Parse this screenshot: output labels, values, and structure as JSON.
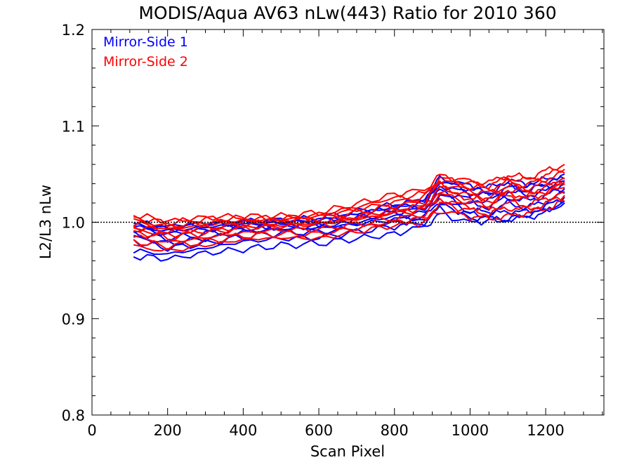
{
  "chart_data": {
    "type": "line",
    "title": "MODIS/Aqua AV63 nLw(443) Ratio for 2010 360",
    "xlabel": "Scan Pixel",
    "ylabel": "L2/L3 nLw",
    "xlim": [
      0,
      1354
    ],
    "ylim": [
      0.8,
      1.2
    ],
    "xticks": [
      "0",
      "200",
      "400",
      "600",
      "800",
      "1000",
      "1200"
    ],
    "yticks": [
      "0.8",
      "0.9",
      "1.0",
      "1.1",
      "1.2"
    ],
    "reference_line": {
      "y": 1.0,
      "style": "dotted"
    },
    "legend": {
      "position": "top-left",
      "entries": [
        "Mirror-Side 1",
        "Mirror-Side 2"
      ]
    },
    "colors": {
      "Mirror-Side 1": "#0000ff",
      "Mirror-Side 2": "#ff0000"
    },
    "x": [
      110,
      200,
      300,
      400,
      500,
      600,
      700,
      800,
      880,
      920,
      1000,
      1050,
      1100,
      1150,
      1200,
      1250
    ],
    "series": [
      {
        "name": "Mirror-Side 1",
        "values": [
          0.965,
          0.962,
          0.968,
          0.972,
          0.976,
          0.978,
          0.983,
          0.988,
          0.996,
          1.008,
          1.0,
          1.002,
          1.003,
          1.005,
          1.01,
          1.02
        ]
      },
      {
        "name": "Mirror-Side 1",
        "values": [
          0.97,
          0.967,
          0.973,
          0.98,
          0.983,
          0.984,
          0.99,
          0.996,
          1.0,
          1.015,
          1.005,
          1.004,
          1.002,
          1.008,
          1.012,
          1.022
        ]
      },
      {
        "name": "Mirror-Side 1",
        "values": [
          0.985,
          0.978,
          0.983,
          0.99,
          0.993,
          0.994,
          0.998,
          1.003,
          1.005,
          1.022,
          1.012,
          1.01,
          1.02,
          1.015,
          1.022,
          1.03
        ]
      },
      {
        "name": "Mirror-Side 1",
        "values": [
          0.988,
          0.983,
          0.988,
          0.993,
          0.995,
          0.996,
          1.0,
          1.006,
          1.01,
          1.028,
          1.018,
          1.016,
          1.026,
          1.022,
          1.028,
          1.035
        ]
      },
      {
        "name": "Mirror-Side 1",
        "values": [
          0.993,
          0.988,
          0.992,
          0.996,
          0.997,
          0.999,
          1.004,
          1.01,
          1.014,
          1.032,
          1.024,
          1.022,
          1.032,
          1.028,
          1.032,
          1.04
        ]
      },
      {
        "name": "Mirror-Side 1",
        "values": [
          0.995,
          0.991,
          0.995,
          0.998,
          0.999,
          1.001,
          1.007,
          1.014,
          1.018,
          1.038,
          1.03,
          1.028,
          1.036,
          1.033,
          1.038,
          1.043
        ]
      },
      {
        "name": "Mirror-Side 1",
        "values": [
          0.998,
          0.993,
          0.997,
          1.0,
          1.0,
          1.003,
          1.009,
          1.016,
          1.021,
          1.042,
          1.034,
          1.031,
          1.039,
          1.036,
          1.041,
          1.045
        ]
      },
      {
        "name": "Mirror-Side 1",
        "values": [
          0.98,
          0.973,
          0.978,
          0.985,
          0.989,
          0.99,
          0.994,
          1.0,
          1.002,
          1.018,
          1.008,
          1.007,
          1.012,
          1.01,
          1.016,
          1.026
        ]
      },
      {
        "name": "Mirror-Side 1",
        "values": [
          1.0,
          0.996,
          0.999,
          1.001,
          1.002,
          1.004,
          1.011,
          1.018,
          1.024,
          1.045,
          1.038,
          1.036,
          1.043,
          1.04,
          1.044,
          1.05
        ]
      },
      {
        "name": "Mirror-Side 2",
        "values": [
          0.975,
          0.97,
          0.976,
          0.982,
          0.984,
          0.983,
          0.99,
          0.997,
          1.0,
          1.012,
          1.006,
          1.004,
          1.006,
          1.01,
          1.014,
          1.022
        ]
      },
      {
        "name": "Mirror-Side 2",
        "values": [
          0.99,
          0.984,
          0.989,
          0.994,
          0.996,
          0.998,
          1.003,
          1.009,
          1.013,
          1.03,
          1.02,
          1.018,
          1.028,
          1.024,
          1.03,
          1.036
        ]
      },
      {
        "name": "Mirror-Side 2",
        "values": [
          0.996,
          0.99,
          0.994,
          0.998,
          0.999,
          1.001,
          1.006,
          1.013,
          1.017,
          1.036,
          1.028,
          1.025,
          1.034,
          1.031,
          1.036,
          1.042
        ]
      },
      {
        "name": "Mirror-Side 2",
        "values": [
          0.999,
          0.993,
          0.997,
          1.0,
          1.001,
          1.003,
          1.01,
          1.017,
          1.022,
          1.04,
          1.033,
          1.03,
          1.038,
          1.035,
          1.04,
          1.046
        ]
      },
      {
        "name": "Mirror-Side 2",
        "values": [
          1.002,
          0.996,
          1.0,
          1.002,
          1.003,
          1.006,
          1.013,
          1.021,
          1.026,
          1.044,
          1.037,
          1.034,
          1.042,
          1.039,
          1.045,
          1.051
        ]
      },
      {
        "name": "Mirror-Side 2",
        "values": [
          1.005,
          0.999,
          1.003,
          1.004,
          1.004,
          1.008,
          1.016,
          1.025,
          1.03,
          1.046,
          1.04,
          1.038,
          1.046,
          1.043,
          1.049,
          1.055
        ]
      },
      {
        "name": "Mirror-Side 2",
        "values": [
          1.008,
          1.001,
          1.005,
          1.006,
          1.006,
          1.01,
          1.019,
          1.029,
          1.034,
          1.048,
          1.043,
          1.041,
          1.049,
          1.046,
          1.053,
          1.06
        ]
      },
      {
        "name": "Mirror-Side 2",
        "values": [
          0.985,
          0.979,
          0.984,
          0.989,
          0.992,
          0.993,
          0.998,
          1.004,
          1.008,
          1.024,
          1.016,
          1.013,
          1.02,
          1.018,
          1.024,
          1.032
        ]
      },
      {
        "name": "Mirror-Side 2",
        "values": [
          0.993,
          0.987,
          0.991,
          0.995,
          0.997,
          0.999,
          1.005,
          1.011,
          1.015,
          1.033,
          1.025,
          1.022,
          1.03,
          1.027,
          1.033,
          1.039
        ]
      },
      {
        "name": "Mirror-Side 2",
        "values": [
          0.98,
          0.975,
          0.98,
          0.986,
          0.988,
          0.988,
          0.994,
          1.001,
          1.004,
          1.02,
          1.012,
          1.009,
          1.015,
          1.013,
          1.019,
          1.028
        ]
      }
    ]
  }
}
